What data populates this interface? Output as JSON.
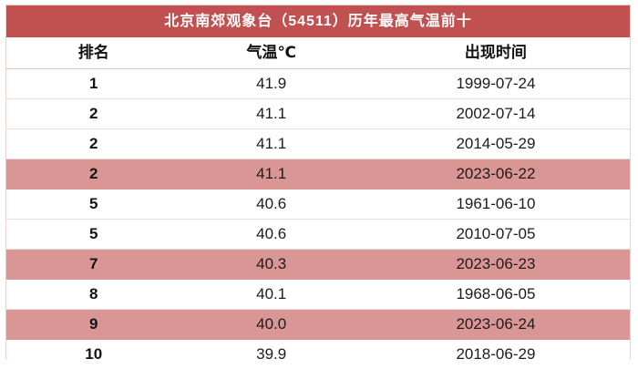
{
  "chart_data": {
    "type": "table",
    "title": "北京南郊观象台（54511）历年最高气温前十",
    "columns": [
      "排名",
      "气温℃",
      "出现时间"
    ],
    "rows": [
      {
        "rank": "1",
        "temp": "41.9",
        "date": "1999-07-24",
        "highlight": false
      },
      {
        "rank": "2",
        "temp": "41.1",
        "date": "2002-07-14",
        "highlight": false
      },
      {
        "rank": "2",
        "temp": "41.1",
        "date": "2014-05-29",
        "highlight": false
      },
      {
        "rank": "2",
        "temp": "41.1",
        "date": "2023-06-22",
        "highlight": true
      },
      {
        "rank": "5",
        "temp": "40.6",
        "date": "1961-06-10",
        "highlight": false
      },
      {
        "rank": "5",
        "temp": "40.6",
        "date": "2010-07-05",
        "highlight": false
      },
      {
        "rank": "7",
        "temp": "40.3",
        "date": "2023-06-23",
        "highlight": true
      },
      {
        "rank": "8",
        "temp": "40.1",
        "date": "1968-06-05",
        "highlight": false
      },
      {
        "rank": "9",
        "temp": "40.0",
        "date": "2023-06-24",
        "highlight": true
      },
      {
        "rank": "10",
        "temp": "39.9",
        "date": "2018-06-29",
        "highlight": false
      }
    ],
    "highlighted_row_indexes": [
      3,
      6,
      8
    ],
    "legend_position": "none",
    "grid": "horizontal-row-separators"
  },
  "colors": {
    "header_bg": "#c15050",
    "title_text": "#ffffff",
    "highlight_bg": "#d99694",
    "outer_border": "#eccfcf"
  }
}
